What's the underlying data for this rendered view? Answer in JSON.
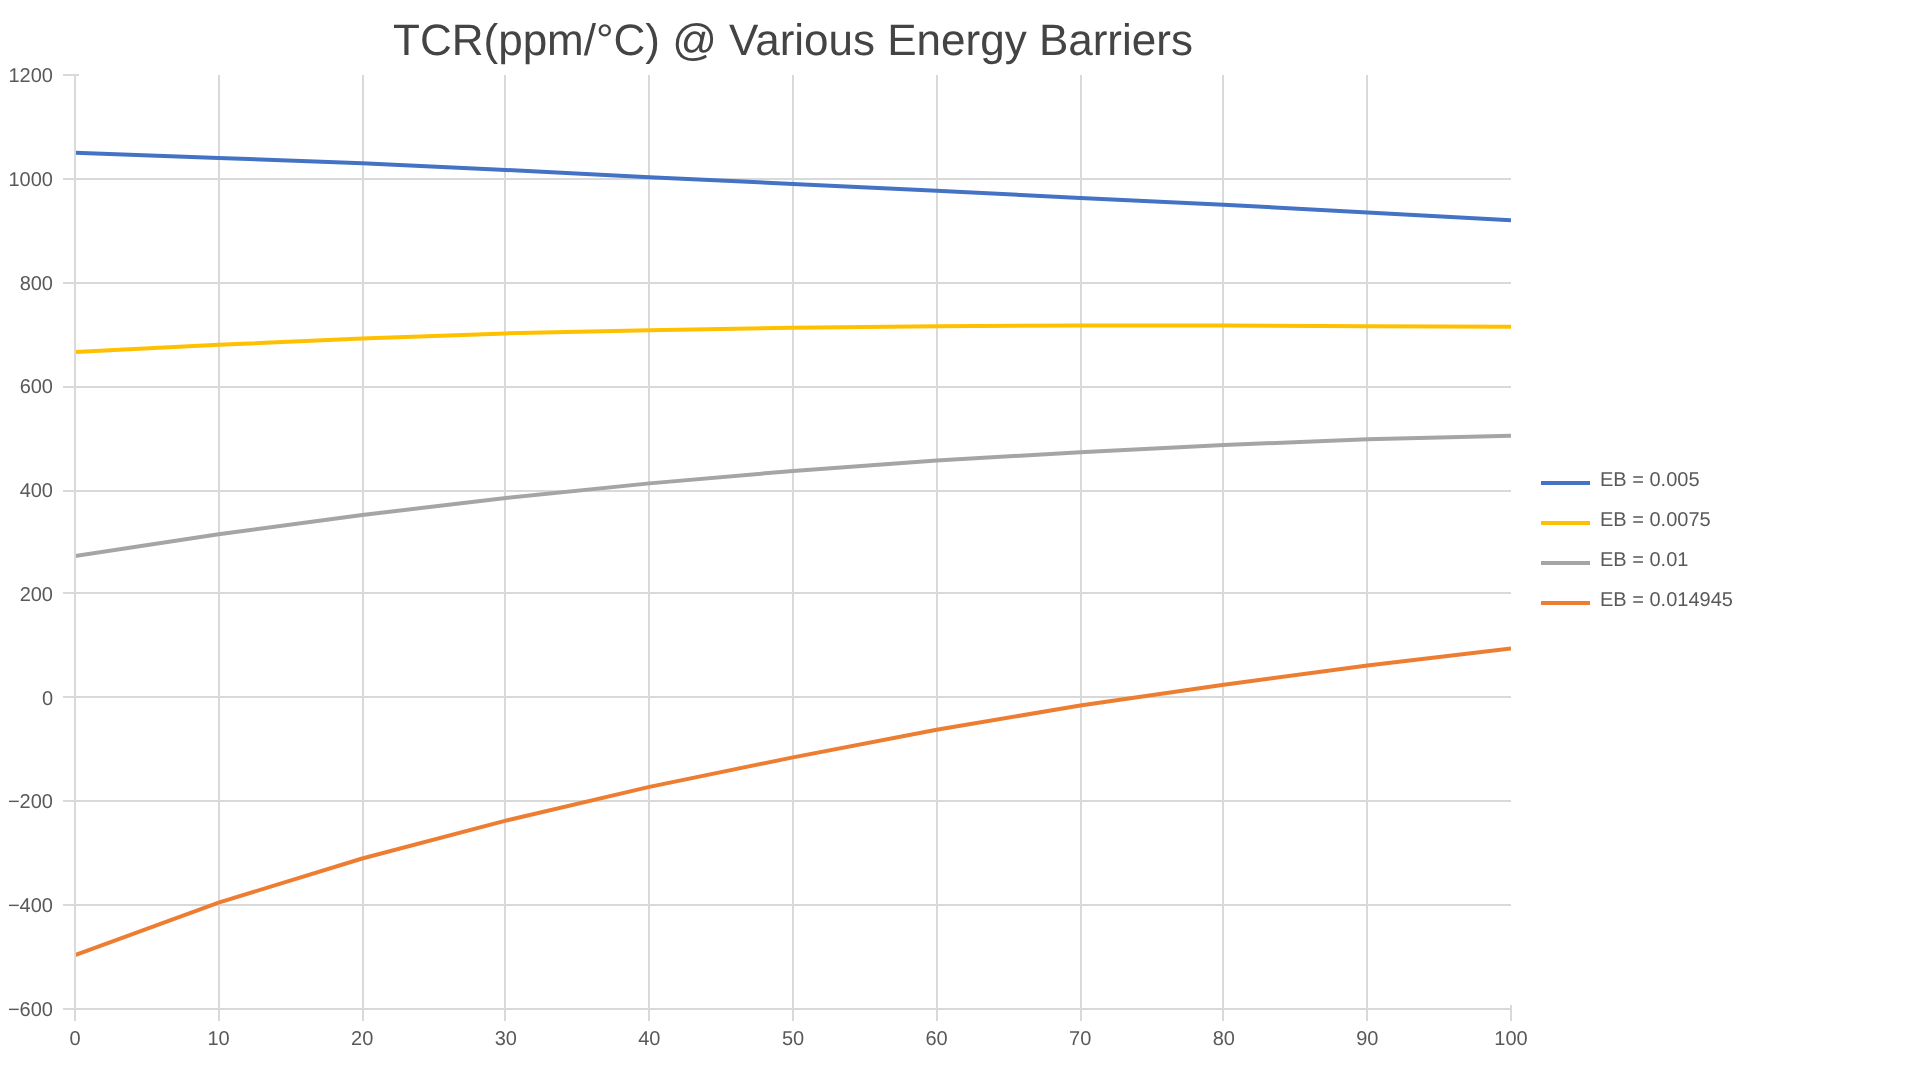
{
  "chart_data": {
    "type": "line",
    "title": "TCR(ppm/°C) @ Various Energy Barriers",
    "x": [
      0,
      10,
      20,
      30,
      40,
      50,
      60,
      70,
      80,
      90,
      100
    ],
    "xlim": [
      0,
      100
    ],
    "xticks": [
      0,
      10,
      20,
      30,
      40,
      50,
      60,
      70,
      80,
      90,
      100
    ],
    "ylim": [
      -600,
      1200
    ],
    "yticks": [
      -600,
      -400,
      -200,
      0,
      200,
      400,
      600,
      800,
      1000,
      1200
    ],
    "grid": true,
    "legend": "right",
    "marker": "none",
    "line_style": "solid",
    "series": [
      {
        "name": "EB = 0.005",
        "color": "#4472c4",
        "values": [
          1050,
          1040,
          1030,
          1017,
          1003,
          990,
          977,
          963,
          950,
          935,
          920
        ]
      },
      {
        "name": "EB = 0.0075",
        "color": "#ffc000",
        "values": [
          666,
          680,
          692,
          702,
          708,
          713,
          716,
          717,
          717,
          716,
          715
        ]
      },
      {
        "name": "EB = 0.01",
        "color": "#a5a5a5",
        "values": [
          273,
          315,
          352,
          385,
          413,
          437,
          457,
          473,
          487,
          498,
          505
        ]
      },
      {
        "name": "EB = 0.014945",
        "color": "#ed7d31",
        "values": [
          -496,
          -395,
          -310,
          -237,
          -172,
          -115,
          -62,
          -15,
          25,
          62,
          95
        ]
      }
    ]
  }
}
